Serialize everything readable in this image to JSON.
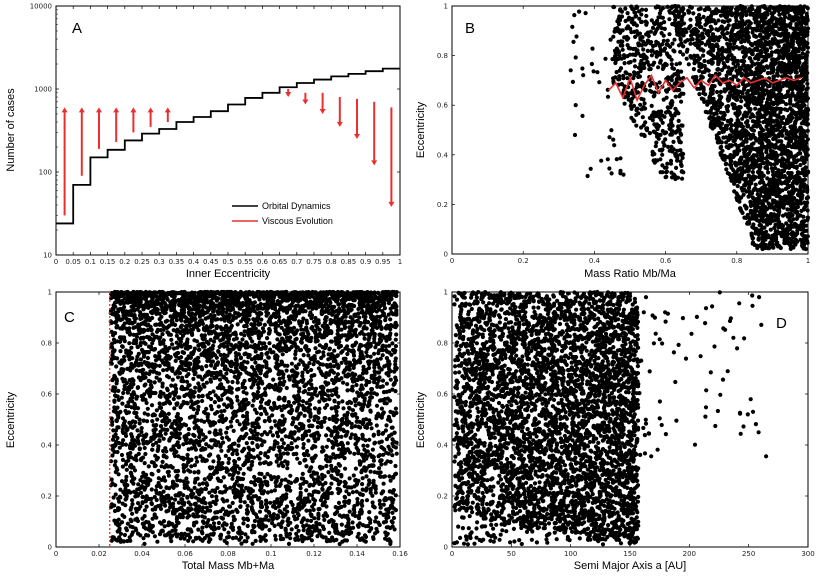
{
  "chart_data": [
    {
      "panel": "A",
      "type": "line",
      "title": "",
      "xlabel": "Inner Eccentricity",
      "ylabel": "Number of cases",
      "xlim": [
        0,
        1
      ],
      "ylim": [
        10,
        10000
      ],
      "yscale": "log",
      "xticks": [
        "0",
        "0.05",
        "0.1",
        "0.15",
        "0.2",
        "0.25",
        "0.3",
        "0.35",
        "0.4",
        "0.45",
        "0.5",
        "0.55",
        "0.6",
        "0.65",
        "0.7",
        "0.75",
        "0.8",
        "0.85",
        "0.9",
        "0.95",
        "1"
      ],
      "yticks": [
        "10",
        "100",
        "1000",
        "10000"
      ],
      "series": [
        {
          "name": "Orbital Dynamics",
          "color": "#000000",
          "style": "step",
          "edges": [
            0,
            0.05,
            0.1,
            0.15,
            0.2,
            0.25,
            0.3,
            0.35,
            0.4,
            0.45,
            0.5,
            0.55,
            0.6,
            0.65,
            0.7,
            0.75,
            0.8,
            0.85,
            0.9,
            0.95,
            1.0
          ],
          "values": [
            24,
            70,
            150,
            185,
            240,
            290,
            330,
            400,
            460,
            540,
            650,
            780,
            900,
            1050,
            1180,
            1300,
            1420,
            1520,
            1640,
            1760
          ]
        },
        {
          "name": "Viscous Evolution",
          "color": "#e83030",
          "style": "arrows",
          "x": [
            0.025,
            0.075,
            0.125,
            0.175,
            0.225,
            0.275,
            0.325,
            0.675,
            0.725,
            0.775,
            0.825,
            0.875,
            0.925,
            0.975
          ],
          "from": [
            30,
            90,
            190,
            230,
            300,
            350,
            400,
            1000,
            900,
            900,
            800,
            760,
            700,
            600
          ],
          "to": [
            600,
            600,
            600,
            600,
            600,
            600,
            600,
            800,
            650,
            500,
            350,
            250,
            120,
            38
          ]
        }
      ],
      "legend": [
        "Orbital Dynamics",
        "Viscous Evolution"
      ],
      "legend_position": "bottom-right"
    },
    {
      "panel": "B",
      "type": "scatter",
      "xlabel": "Mass Ratio Mb/Ma",
      "ylabel": "Eccentricity",
      "xlim": [
        0,
        1
      ],
      "ylim": [
        0,
        1
      ],
      "xticks": [
        "0",
        "0.2",
        "0.4",
        "0.6",
        "0.8",
        "1"
      ],
      "yticks": [
        "0",
        "0.2",
        "0.4",
        "0.6",
        "0.8",
        "1"
      ],
      "points": {
        "generator": "x >= 0.33, density rising toward 1"
      },
      "mean_line": {
        "color": "#e83030",
        "x": [
          0.44,
          0.46,
          0.48,
          0.5,
          0.52,
          0.54,
          0.56,
          0.58,
          0.6,
          0.62,
          0.64,
          0.66,
          0.68,
          0.7,
          0.72,
          0.74,
          0.76,
          0.78,
          0.8,
          0.82,
          0.84,
          0.86,
          0.88,
          0.9,
          0.92,
          0.94,
          0.96,
          0.98
        ],
        "y": [
          0.66,
          0.69,
          0.63,
          0.71,
          0.62,
          0.68,
          0.72,
          0.65,
          0.7,
          0.66,
          0.69,
          0.71,
          0.67,
          0.7,
          0.68,
          0.72,
          0.69,
          0.7,
          0.68,
          0.71,
          0.69,
          0.7,
          0.71,
          0.69,
          0.7,
          0.71,
          0.7,
          0.71
        ]
      }
    },
    {
      "panel": "C",
      "type": "scatter",
      "xlabel": "Total Mass Mb+Ma",
      "ylabel": "Eccentricity",
      "xlim": [
        0,
        0.16
      ],
      "ylim": [
        0,
        1
      ],
      "xticks": [
        "0",
        "0.02",
        "0.04",
        "0.06",
        "0.08",
        "0.1",
        "0.12",
        "0.14",
        "0.16"
      ],
      "yticks": [
        "0",
        "0.2",
        "0.4",
        "0.6",
        "0.8",
        "1"
      ],
      "cutoff_line": {
        "x": 0.025,
        "color": "#e83030",
        "style": "dotted"
      },
      "points": {
        "generator": "x in [0.025, 0.16], dense at high e"
      }
    },
    {
      "panel": "D",
      "type": "scatter",
      "xlabel": "Semi Major Axis a [AU]",
      "ylabel": "Eccentricity",
      "xlim": [
        0,
        300
      ],
      "ylim": [
        0,
        1
      ],
      "xticks": [
        "0",
        "50",
        "100",
        "150",
        "200",
        "250",
        "300"
      ],
      "yticks": [
        "0",
        "0.2",
        "0.4",
        "0.6",
        "0.8",
        "1"
      ],
      "points": {
        "generator": "a < ~160 AU, sparse tail to 265 AU"
      }
    }
  ],
  "panel_labels": [
    "A",
    "B",
    "C",
    "D"
  ],
  "colors": {
    "data": "#000000",
    "highlight": "#e83030"
  }
}
